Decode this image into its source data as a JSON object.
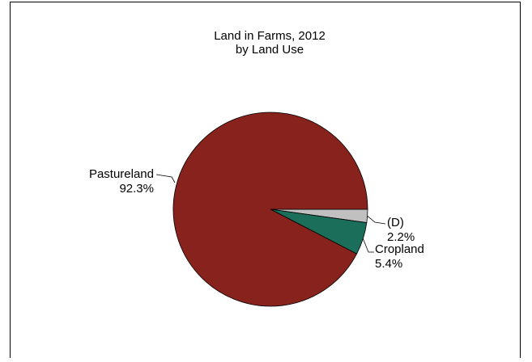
{
  "chart_data": {
    "type": "pie",
    "title": "Land in Farms, 2012",
    "subtitle": "by Land Use",
    "slices": [
      {
        "label": "Pastureland",
        "value": 92.3,
        "value_label": "92.3%",
        "color": "#88221c"
      },
      {
        "label": "Cropland",
        "value": 5.4,
        "value_label": "5.4%",
        "color": "#1b6e5a"
      },
      {
        "label": "(D)",
        "value": 2.2,
        "value_label": "2.2%",
        "color": "#c0c0c0"
      }
    ]
  }
}
